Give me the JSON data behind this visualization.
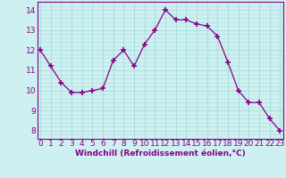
{
  "x": [
    0,
    1,
    2,
    3,
    4,
    5,
    6,
    7,
    8,
    9,
    10,
    11,
    12,
    13,
    14,
    15,
    16,
    17,
    18,
    19,
    20,
    21,
    22,
    23
  ],
  "y": [
    12.0,
    11.2,
    10.4,
    9.9,
    9.9,
    10.0,
    10.1,
    11.5,
    12.0,
    11.2,
    12.3,
    13.0,
    14.0,
    13.5,
    13.5,
    13.3,
    13.2,
    12.7,
    11.4,
    10.0,
    9.4,
    9.4,
    8.6,
    8.0
  ],
  "line_color": "#880088",
  "marker": "+",
  "marker_size": 4,
  "marker_lw": 1.2,
  "bg_color": "#cef0f0",
  "grid_color": "#aadddd",
  "xlabel": "Windchill (Refroidissement éolien,°C)",
  "xlabel_color": "#880088",
  "xlabel_fontsize": 6.5,
  "xtick_labels": [
    "0",
    "1",
    "2",
    "3",
    "4",
    "5",
    "6",
    "7",
    "8",
    "9",
    "10",
    "11",
    "12",
    "13",
    "14",
    "15",
    "16",
    "17",
    "18",
    "19",
    "20",
    "21",
    "22",
    "23"
  ],
  "ytick_values": [
    8,
    9,
    10,
    11,
    12,
    13,
    14
  ],
  "ylim": [
    7.6,
    14.4
  ],
  "xlim": [
    -0.3,
    23.3
  ],
  "tick_fontsize": 6.5,
  "tick_color": "#880088",
  "spine_color": "#880088",
  "grid_major_minor": 5
}
